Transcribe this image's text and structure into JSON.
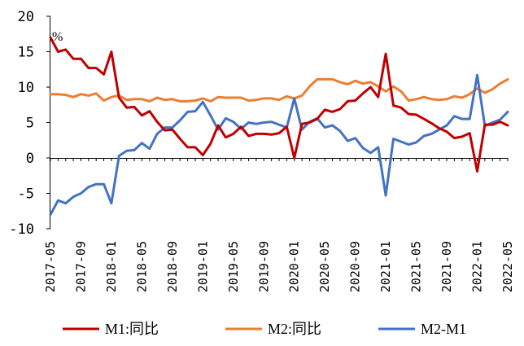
{
  "chart_data": {
    "type": "line",
    "unit_label": "%",
    "ylim": [
      -10,
      20
    ],
    "yticks": [
      -10,
      -5,
      0,
      5,
      10,
      15,
      20
    ],
    "x_tick_labels": [
      "2017-05",
      "2017-09",
      "2018-01",
      "2018-05",
      "2018-09",
      "2019-01",
      "2019-05",
      "2019-09",
      "2020-01",
      "2020-05",
      "2020-09",
      "2021-01",
      "2021-05",
      "2021-09",
      "2022-01",
      "2022-05"
    ],
    "x": [
      "2017-05",
      "2017-06",
      "2017-07",
      "2017-08",
      "2017-09",
      "2017-10",
      "2017-11",
      "2017-12",
      "2018-01",
      "2018-02",
      "2018-03",
      "2018-04",
      "2018-05",
      "2018-06",
      "2018-07",
      "2018-08",
      "2018-09",
      "2018-10",
      "2018-11",
      "2018-12",
      "2019-01",
      "2019-02",
      "2019-03",
      "2019-04",
      "2019-05",
      "2019-06",
      "2019-07",
      "2019-08",
      "2019-09",
      "2019-10",
      "2019-11",
      "2019-12",
      "2020-01",
      "2020-02",
      "2020-03",
      "2020-04",
      "2020-05",
      "2020-06",
      "2020-07",
      "2020-08",
      "2020-09",
      "2020-10",
      "2020-11",
      "2020-12",
      "2021-01",
      "2021-02",
      "2021-03",
      "2021-04",
      "2021-05",
      "2021-06",
      "2021-07",
      "2021-08",
      "2021-09",
      "2021-10",
      "2021-11",
      "2021-12",
      "2022-01",
      "2022-02",
      "2022-03",
      "2022-04",
      "2022-05"
    ],
    "grid": false,
    "legend_position": "bottom",
    "series": [
      {
        "name": "M1:同比",
        "color": "#C00000",
        "values": [
          17.0,
          15.0,
          15.3,
          14.0,
          14.0,
          12.7,
          12.7,
          11.8,
          15.0,
          8.5,
          7.1,
          7.2,
          6.0,
          6.6,
          5.1,
          3.9,
          4.0,
          2.7,
          1.5,
          1.5,
          0.4,
          2.0,
          4.6,
          2.9,
          3.4,
          4.4,
          3.1,
          3.4,
          3.4,
          3.3,
          3.5,
          4.4,
          0.0,
          4.8,
          5.0,
          5.5,
          6.8,
          6.5,
          6.9,
          8.0,
          8.1,
          9.1,
          10.0,
          8.6,
          14.7,
          7.4,
          7.1,
          6.2,
          6.1,
          5.5,
          4.9,
          4.2,
          3.7,
          2.8,
          3.0,
          3.5,
          -1.9,
          4.7,
          4.7,
          5.1,
          4.6
        ]
      },
      {
        "name": "M2:同比",
        "color": "#ED7D31",
        "values": [
          9.0,
          9.0,
          8.9,
          8.6,
          9.0,
          8.8,
          9.1,
          8.1,
          8.6,
          8.8,
          8.2,
          8.3,
          8.3,
          8.0,
          8.5,
          8.2,
          8.3,
          8.0,
          8.0,
          8.1,
          8.4,
          8.0,
          8.6,
          8.5,
          8.5,
          8.5,
          8.1,
          8.2,
          8.4,
          8.4,
          8.2,
          8.7,
          8.4,
          8.8,
          10.1,
          11.1,
          11.1,
          11.1,
          10.7,
          10.4,
          10.9,
          10.5,
          10.7,
          10.1,
          9.4,
          10.1,
          9.4,
          8.1,
          8.3,
          8.6,
          8.3,
          8.2,
          8.3,
          8.7,
          8.5,
          9.0,
          9.8,
          9.2,
          9.7,
          10.5,
          11.1
        ]
      },
      {
        "name": "M2-M1",
        "color": "#4472C4",
        "values": [
          -8.0,
          -6.0,
          -6.4,
          -5.5,
          -5.0,
          -4.1,
          -3.7,
          -3.7,
          -6.4,
          0.3,
          1.0,
          1.1,
          2.1,
          1.3,
          3.4,
          4.3,
          4.3,
          5.3,
          6.5,
          6.6,
          7.9,
          6.0,
          4.0,
          5.6,
          5.1,
          4.1,
          5.0,
          4.8,
          5.0,
          5.1,
          4.7,
          4.3,
          8.4,
          4.0,
          5.1,
          5.6,
          4.3,
          4.6,
          3.8,
          2.4,
          2.8,
          1.4,
          0.7,
          1.5,
          -5.3,
          2.7,
          2.3,
          1.9,
          2.2,
          3.1,
          3.4,
          4.0,
          4.6,
          5.9,
          5.5,
          5.5,
          11.7,
          4.5,
          5.0,
          5.4,
          6.5
        ]
      }
    ]
  }
}
